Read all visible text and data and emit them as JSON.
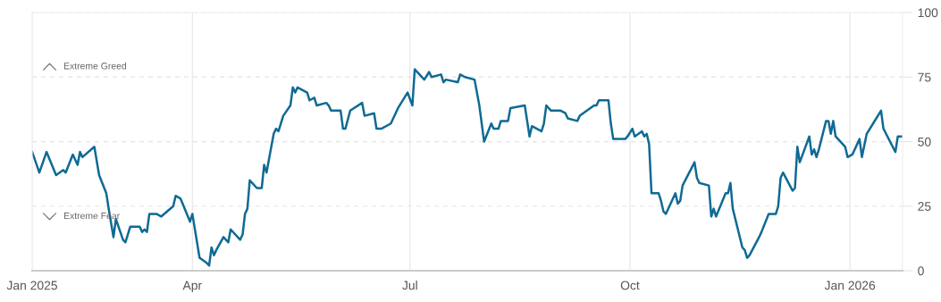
{
  "chart_data": {
    "type": "line",
    "grid": true,
    "annotations": [
      "Extreme Greed",
      "Extreme Fear"
    ],
    "xlim": [
      "2025-01-24",
      "2026-01-23"
    ],
    "xticks": [
      {
        "value": "2025-01-24",
        "label": "Jan 2025"
      },
      {
        "value": "2025-04-01",
        "label": "Apr"
      },
      {
        "value": "2025-07-01",
        "label": "Jul"
      },
      {
        "value": "2025-10-01",
        "label": "Oct"
      },
      {
        "value": "2026-01-01",
        "label": "Jan 2026"
      }
    ],
    "ylim": [
      0,
      100
    ],
    "yticks": [
      0,
      25,
      50,
      75,
      100
    ],
    "series": [
      {
        "color": "#0f6a94",
        "x": [
          "2025-01-24",
          "2025-01-27",
          "2025-01-30",
          "2025-02-03",
          "2025-02-06",
          "2025-02-07",
          "2025-02-10",
          "2025-02-12",
          "2025-02-13",
          "2025-02-14",
          "2025-02-19",
          "2025-02-21",
          "2025-02-24",
          "2025-02-25",
          "2025-02-27",
          "2025-02-28",
          "2025-03-03",
          "2025-03-04",
          "2025-03-06",
          "2025-03-10",
          "2025-03-11",
          "2025-03-12",
          "2025-03-13",
          "2025-03-14",
          "2025-03-17",
          "2025-03-19",
          "2025-03-24",
          "2025-03-25",
          "2025-03-27",
          "2025-03-31",
          "2025-04-01",
          "2025-04-04",
          "2025-04-07",
          "2025-04-08",
          "2025-04-09",
          "2025-04-10",
          "2025-04-11",
          "2025-04-14",
          "2025-04-16",
          "2025-04-17",
          "2025-04-21",
          "2025-04-22",
          "2025-04-23",
          "2025-04-24",
          "2025-04-25",
          "2025-04-28",
          "2025-04-30",
          "2025-05-01",
          "2025-05-02",
          "2025-05-05",
          "2025-05-06",
          "2025-05-07",
          "2025-05-08",
          "2025-05-09",
          "2025-05-12",
          "2025-05-13",
          "2025-05-14",
          "2025-05-15",
          "2025-05-19",
          "2025-05-20",
          "2025-05-22",
          "2025-05-23",
          "2025-05-27",
          "2025-05-28",
          "2025-05-29",
          "2025-06-02",
          "2025-06-03",
          "2025-06-04",
          "2025-06-06",
          "2025-06-11",
          "2025-06-12",
          "2025-06-16",
          "2025-06-17",
          "2025-06-19",
          "2025-06-23",
          "2025-06-24",
          "2025-06-26",
          "2025-06-30",
          "2025-07-02",
          "2025-07-03",
          "2025-07-07",
          "2025-07-09",
          "2025-07-10",
          "2025-07-14",
          "2025-07-15",
          "2025-07-16",
          "2025-07-21",
          "2025-07-22",
          "2025-07-24",
          "2025-07-28",
          "2025-07-30",
          "2025-08-01",
          "2025-08-04",
          "2025-08-05",
          "2025-08-07",
          "2025-08-08",
          "2025-08-11",
          "2025-08-12",
          "2025-08-18",
          "2025-08-20",
          "2025-08-21",
          "2025-08-25",
          "2025-08-26",
          "2025-08-27",
          "2025-08-29",
          "2025-09-02",
          "2025-09-04",
          "2025-09-05",
          "2025-09-09",
          "2025-09-10",
          "2025-09-16",
          "2025-09-17",
          "2025-09-18",
          "2025-09-22",
          "2025-09-23",
          "2025-09-24",
          "2025-09-25",
          "2025-09-29",
          "2025-09-30",
          "2025-10-02",
          "2025-10-03",
          "2025-10-06",
          "2025-10-07",
          "2025-10-08",
          "2025-10-09",
          "2025-10-10",
          "2025-10-13",
          "2025-10-14",
          "2025-10-15",
          "2025-10-16",
          "2025-10-20",
          "2025-10-21",
          "2025-10-22",
          "2025-10-23",
          "2025-10-28",
          "2025-10-29",
          "2025-10-30",
          "2025-11-03",
          "2025-11-04",
          "2025-11-05",
          "2025-11-06",
          "2025-11-10",
          "2025-11-11",
          "2025-11-12",
          "2025-11-13",
          "2025-11-17",
          "2025-11-18",
          "2025-11-19",
          "2025-11-20",
          "2025-11-24",
          "2025-11-25",
          "2025-11-28",
          "2025-12-01",
          "2025-12-02",
          "2025-12-03",
          "2025-12-04",
          "2025-12-08",
          "2025-12-09",
          "2025-12-10",
          "2025-12-11",
          "2025-12-15",
          "2025-12-16",
          "2025-12-17",
          "2025-12-18",
          "2025-12-19",
          "2025-12-22",
          "2025-12-23",
          "2025-12-24",
          "2025-12-25",
          "2025-12-26",
          "2025-12-29",
          "2025-12-30",
          "2025-12-31",
          "2026-01-02",
          "2026-01-05",
          "2026-01-06",
          "2026-01-08",
          "2026-01-12",
          "2026-01-14",
          "2026-01-15",
          "2026-01-20",
          "2026-01-21",
          "2026-01-22",
          "2026-01-23"
        ],
        "values": [
          46,
          38,
          46,
          37,
          39,
          38,
          45,
          41,
          46,
          44,
          48,
          37,
          30,
          24,
          13,
          20,
          12,
          11,
          17,
          17,
          15,
          16,
          15,
          22,
          22,
          21,
          25,
          29,
          28,
          19,
          22,
          5,
          3,
          2,
          9,
          6,
          8,
          13,
          11,
          16,
          12,
          14,
          22,
          24,
          35,
          32,
          32,
          41,
          38,
          53,
          55,
          54,
          57,
          60,
          64,
          71,
          69,
          71,
          69,
          66,
          67,
          64,
          65,
          64,
          62,
          62,
          55,
          55,
          62,
          65,
          60,
          61,
          55,
          55,
          57,
          59,
          63,
          69,
          64,
          78,
          74,
          77,
          75,
          76,
          73,
          74,
          73,
          76,
          75,
          74,
          64,
          50,
          57,
          55,
          55,
          58,
          58,
          63,
          64,
          52,
          56,
          54,
          57,
          64,
          62,
          62,
          61,
          59,
          58,
          60,
          64,
          64,
          66,
          66,
          57,
          51,
          51,
          51,
          52,
          55,
          52,
          54,
          52,
          53,
          49,
          30,
          30,
          27,
          23,
          22,
          30,
          26,
          27,
          33,
          42,
          36,
          34,
          33,
          21,
          24,
          21,
          30,
          30,
          34,
          24,
          9,
          8,
          5,
          6,
          13,
          15,
          22,
          22,
          25,
          36,
          38,
          31,
          32,
          48,
          42,
          52,
          45,
          47,
          44,
          47,
          58,
          58,
          53,
          58,
          52,
          49,
          48,
          44,
          45,
          51,
          44,
          53,
          59,
          62,
          55,
          46,
          52,
          52,
          52
        ]
      }
    ]
  }
}
